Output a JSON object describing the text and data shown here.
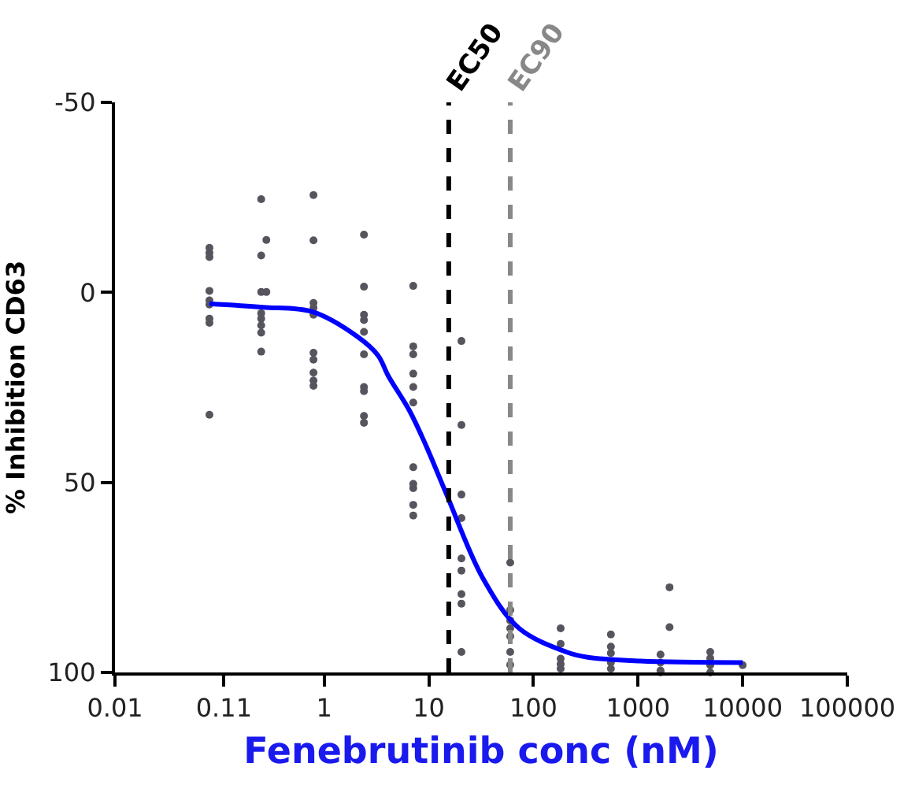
{
  "chart_data": {
    "type": "scatter",
    "xlabel": "Fenebrutinib conc (nM)",
    "ylabel": "% Inhibition CD63",
    "log": "x",
    "xlim": [
      0.01,
      100000
    ],
    "xticks": [
      0.01,
      0.11,
      1,
      10,
      100,
      1000,
      10000,
      100000
    ],
    "ylim": [
      100,
      -50
    ],
    "yticks": [
      -50,
      0,
      50,
      100
    ],
    "series": [
      {
        "marker": "circle",
        "color": "#58545e",
        "x": [
          0.08,
          0.08,
          0.08,
          0.08,
          0.08,
          0.08,
          0.08,
          0.08,
          0.08,
          0.25,
          0.28,
          0.25,
          0.25,
          0.28,
          0.25,
          0.25,
          0.25,
          0.25,
          0.25,
          0.79,
          0.79,
          0.79,
          0.79,
          0.79,
          0.79,
          0.79,
          0.79,
          0.79,
          0.79,
          2.4,
          2.4,
          2.4,
          2.4,
          2.4,
          2.4,
          2.4,
          2.4,
          2.4,
          2.4,
          7.1,
          7.1,
          7.1,
          7.1,
          7.1,
          7.1,
          7.1,
          7.1,
          7.1,
          7.1,
          7.1,
          20.5,
          20.5,
          20.5,
          20.5,
          20.5,
          20.5,
          20.5,
          20.5,
          20.5,
          60,
          60,
          60,
          60,
          60,
          60,
          60,
          182,
          182,
          182,
          182,
          182,
          550,
          550,
          550,
          550,
          550,
          1640,
          1640,
          1640,
          1640,
          2000,
          2000,
          4900,
          4900,
          4900,
          4900,
          10000
        ],
        "values": [
          -11.7,
          -10.4,
          -9.3,
          -0.4,
          2.1,
          3.2,
          6.9,
          8,
          32.2,
          -24.5,
          -13.8,
          -9.7,
          -0.1,
          -0.1,
          5.5,
          6.9,
          8.7,
          10.6,
          15.6,
          -25.6,
          -13.7,
          2.8,
          4.1,
          5.9,
          15.9,
          17.7,
          21.1,
          23.2,
          24.6,
          -15.2,
          -1.5,
          5.9,
          7.3,
          10.4,
          16.3,
          24.9,
          26,
          32.5,
          34.3,
          -1.7,
          14.2,
          16.3,
          21.4,
          24.9,
          29,
          46,
          50.4,
          51.5,
          55.9,
          58.7,
          12.8,
          34.9,
          53.2,
          59.4,
          70,
          73.2,
          79.4,
          81.9,
          94.6,
          71.1,
          83.6,
          86.3,
          88.4,
          90.5,
          94.6,
          98,
          88.4,
          92.5,
          96.4,
          97.8,
          99,
          90,
          93.2,
          94.9,
          97.4,
          99,
          95.3,
          97.4,
          99.5,
          100,
          77.6,
          88.1,
          94.6,
          96.3,
          98.1,
          100,
          98.1
        ]
      },
      {
        "type": "line",
        "color": "#0000ff",
        "x": [
          0.08,
          0.258,
          0.77,
          2.09,
          3.27,
          4.1,
          6.5,
          9.3,
          14.7,
          33,
          73,
          206,
          330,
          1050,
          10000
        ],
        "values": [
          3,
          3.9,
          5.1,
          11.7,
          16.6,
          22,
          31,
          40,
          53,
          75.3,
          88.4,
          94.6,
          96,
          97,
          97.4
        ]
      }
    ],
    "ref_lines": [
      {
        "axis": "x",
        "value": 15.5,
        "label": "EC50",
        "color": "#000000",
        "line_style": "dashed"
      },
      {
        "axis": "x",
        "value": 60,
        "label": "EC90",
        "color": "#888888",
        "line_style": "dashed"
      }
    ]
  }
}
